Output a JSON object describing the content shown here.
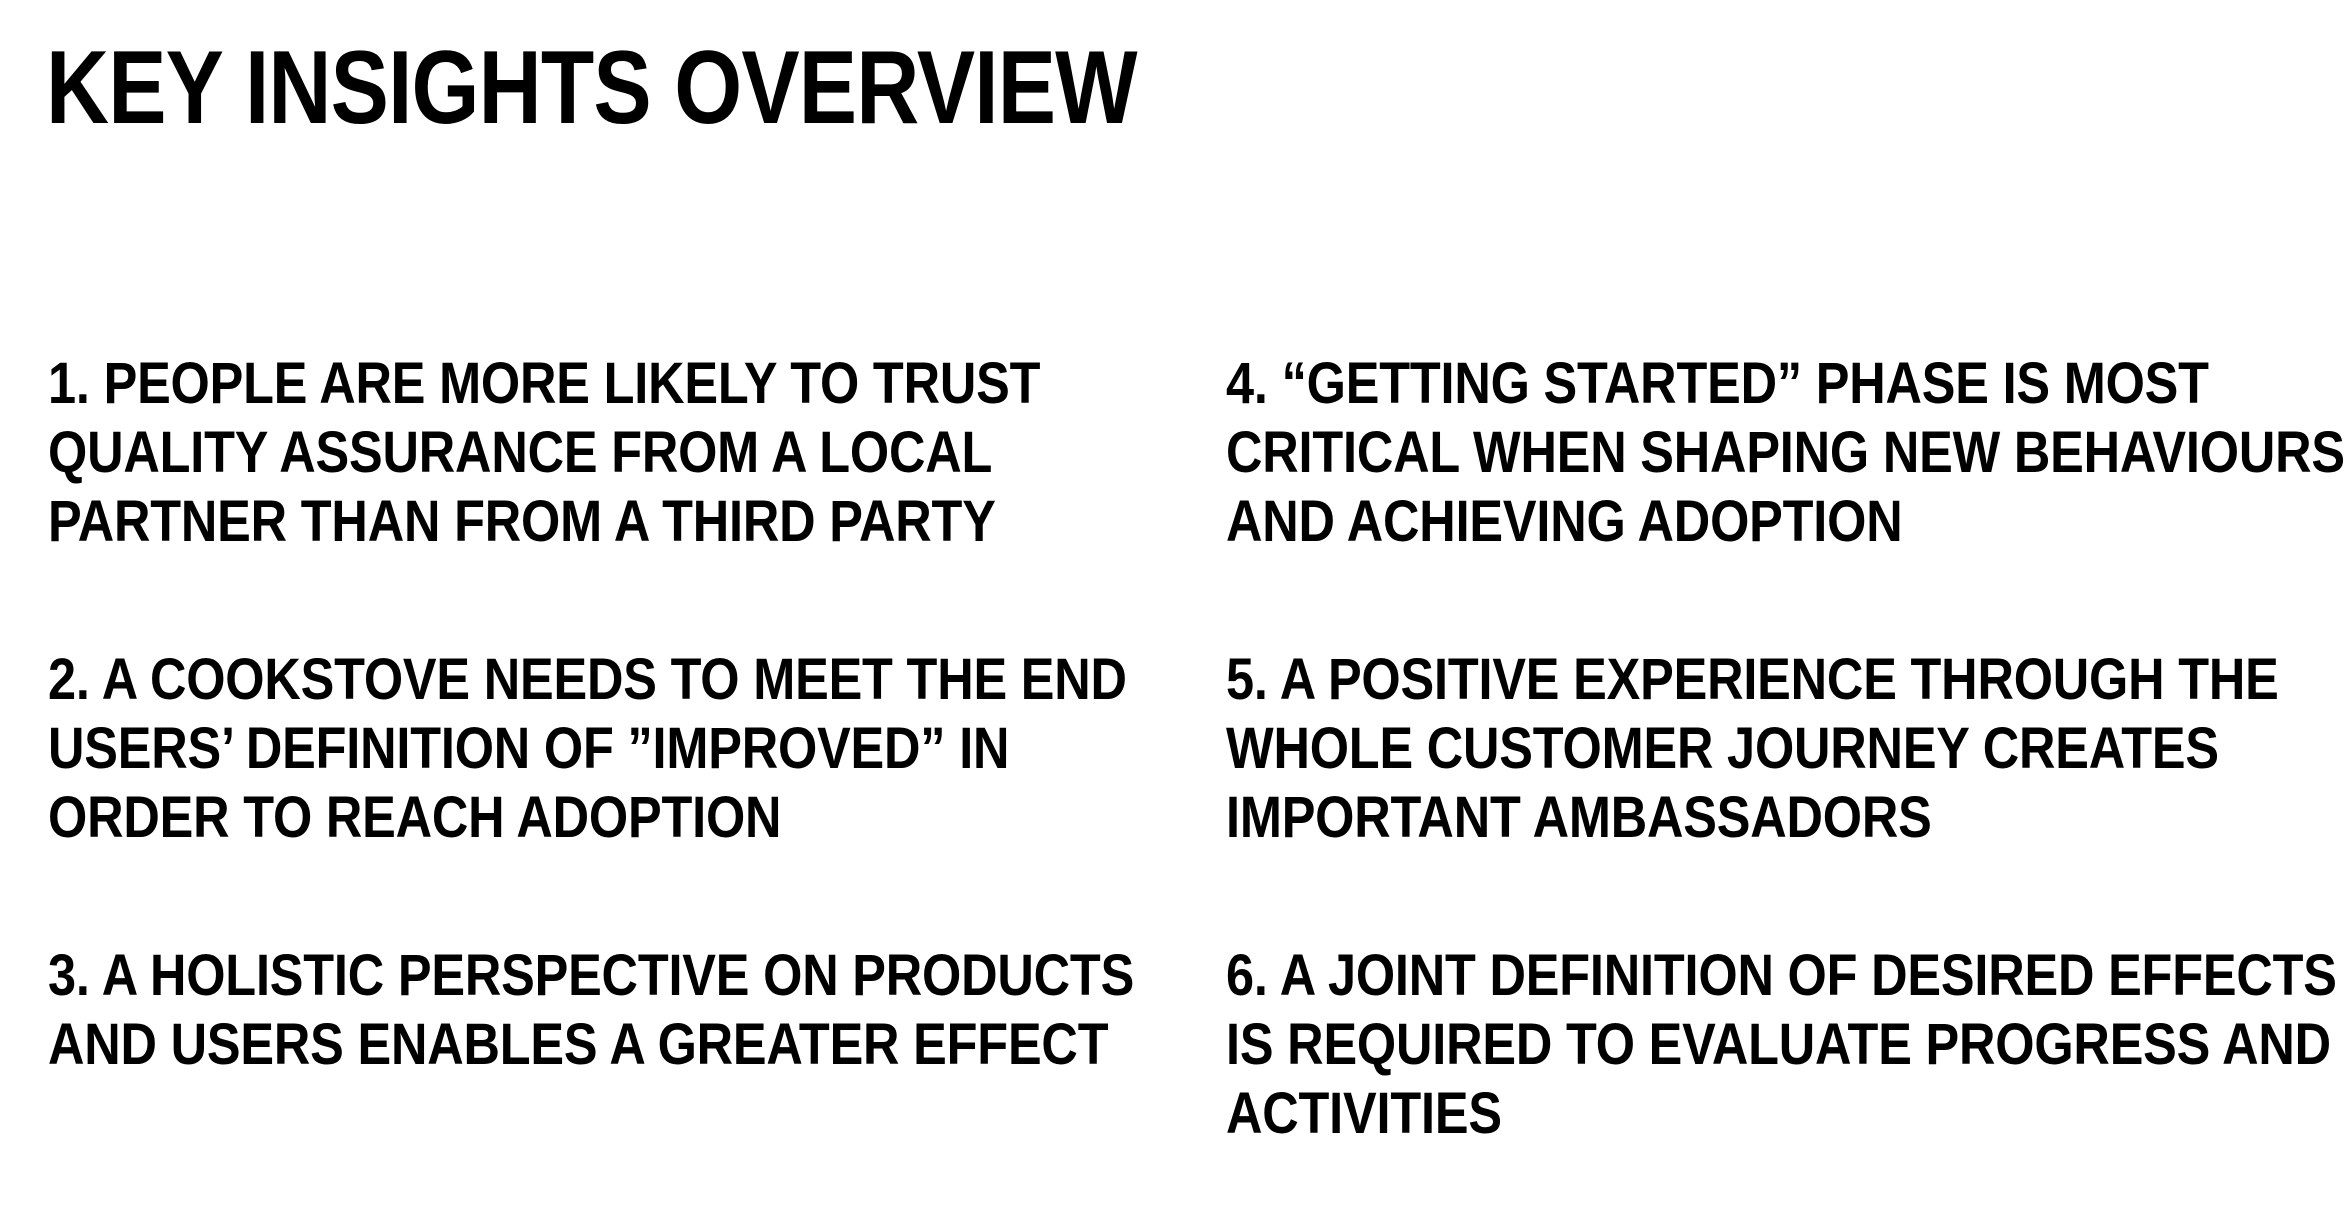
{
  "title": "KEY INSIGHTS OVERVIEW",
  "insights": [
    {
      "lines": [
        "1. PEOPLE ARE MORE LIKELY TO TRUST",
        "QUALITY ASSURANCE FROM A LOCAL",
        "PARTNER THAN FROM A THIRD PARTY"
      ]
    },
    {
      "lines": [
        "2. A COOKSTOVE NEEDS TO MEET THE END",
        "USERS’ DEFINITION OF ”IMPROVED” IN",
        "ORDER TO REACH ADOPTION"
      ]
    },
    {
      "lines": [
        "3. A HOLISTIC PERSPECTIVE ON PRODUCTS",
        "AND USERS ENABLES A GREATER EFFECT"
      ]
    },
    {
      "lines": [
        "4. “GETTING STARTED” PHASE IS MOST",
        "CRITICAL WHEN SHAPING NEW BEHAVIOURS",
        "AND ACHIEVING ADOPTION"
      ]
    },
    {
      "lines": [
        "5. A POSITIVE EXPERIENCE THROUGH THE",
        "WHOLE CUSTOMER JOURNEY CREATES",
        "IMPORTANT AMBASSADORS"
      ]
    },
    {
      "lines": [
        "6. A JOINT DEFINITION OF DESIRED EFFECTS",
        "IS REQUIRED TO EVALUATE PROGRESS  AND",
        "ACTIVITIES"
      ]
    }
  ]
}
